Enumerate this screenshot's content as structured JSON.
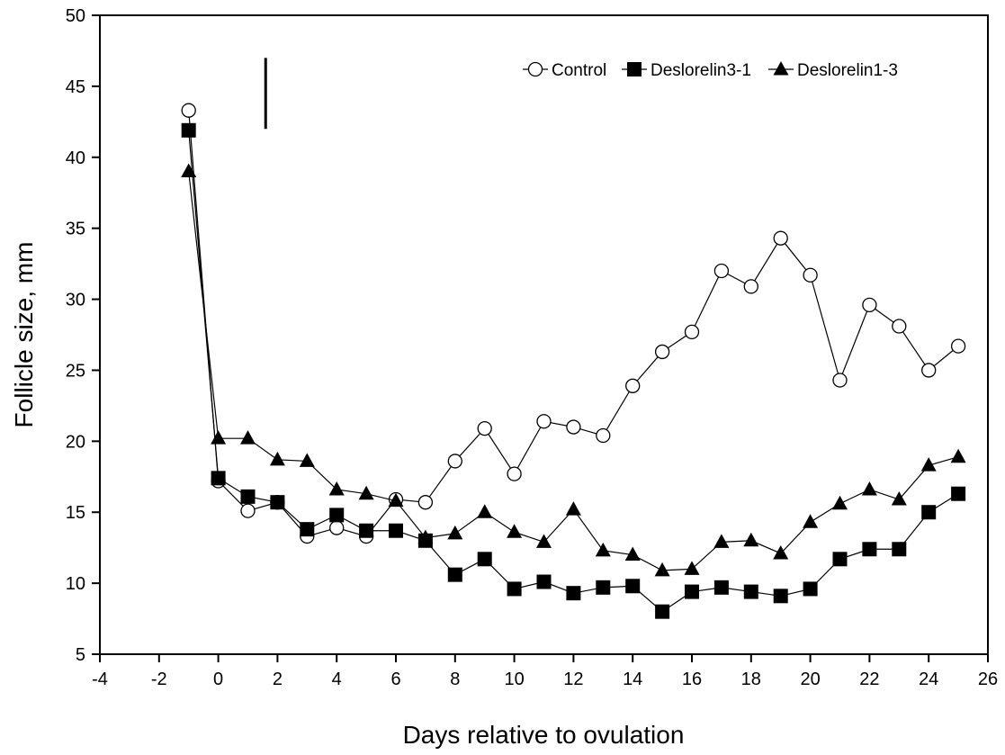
{
  "chart_data": {
    "type": "line",
    "title": "",
    "xlabel": "Days relative to ovulation",
    "ylabel": "Follicle size, mm",
    "xlim": [
      -4,
      26
    ],
    "ylim": [
      5,
      50
    ],
    "xticks": [
      -4,
      -2,
      0,
      2,
      4,
      6,
      8,
      10,
      12,
      14,
      16,
      18,
      20,
      22,
      24,
      26
    ],
    "yticks": [
      5,
      10,
      15,
      20,
      25,
      30,
      35,
      40,
      45,
      50
    ],
    "grid": false,
    "legend_position": "top-right",
    "annotations": [
      {
        "type": "vertical-bar",
        "x": 1.6,
        "y_from": 42,
        "y_to": 47
      }
    ],
    "series": [
      {
        "name": "Control",
        "marker": "open-circle",
        "color": "#000000",
        "x": [
          -1,
          0,
          1,
          2,
          3,
          4,
          5,
          6,
          7,
          8,
          9,
          10,
          11,
          12,
          13,
          14,
          15,
          16,
          17,
          18,
          19,
          20,
          21,
          22,
          23,
          24,
          25
        ],
        "y": [
          43.3,
          17.2,
          15.1,
          15.7,
          13.3,
          13.9,
          13.3,
          15.9,
          15.7,
          18.6,
          20.9,
          17.7,
          21.4,
          21.0,
          20.4,
          23.9,
          26.3,
          27.7,
          32.0,
          30.9,
          34.3,
          31.7,
          24.3,
          29.6,
          28.1,
          25.0,
          26.7
        ]
      },
      {
        "name": "Deslorelin3-1",
        "marker": "filled-square",
        "color": "#000000",
        "x": [
          -1,
          0,
          1,
          2,
          3,
          4,
          5,
          6,
          7,
          8,
          9,
          10,
          11,
          12,
          13,
          14,
          15,
          16,
          17,
          18,
          19,
          20,
          21,
          22,
          23,
          24,
          25
        ],
        "y": [
          41.9,
          17.4,
          16.1,
          15.7,
          13.8,
          14.8,
          13.7,
          13.7,
          13.0,
          10.6,
          11.7,
          9.6,
          10.1,
          9.3,
          9.7,
          9.8,
          8.0,
          9.4,
          9.7,
          9.4,
          9.1,
          9.6,
          11.7,
          12.4,
          12.4,
          15.0,
          16.3
        ]
      },
      {
        "name": "Deslorelin1-3",
        "marker": "filled-triangle",
        "color": "#000000",
        "x": [
          -1,
          0,
          1,
          2,
          3,
          4,
          5,
          6,
          7,
          8,
          9,
          10,
          11,
          12,
          13,
          14,
          15,
          16,
          17,
          18,
          19,
          20,
          21,
          22,
          23,
          24,
          25
        ],
        "y": [
          39.0,
          20.2,
          20.2,
          18.7,
          18.6,
          16.6,
          16.3,
          15.8,
          13.2,
          13.5,
          15.0,
          13.6,
          12.9,
          15.2,
          12.3,
          12.0,
          10.9,
          11.0,
          12.9,
          13.0,
          12.1,
          14.3,
          15.6,
          16.6,
          15.9,
          18.3,
          18.9
        ]
      }
    ]
  }
}
